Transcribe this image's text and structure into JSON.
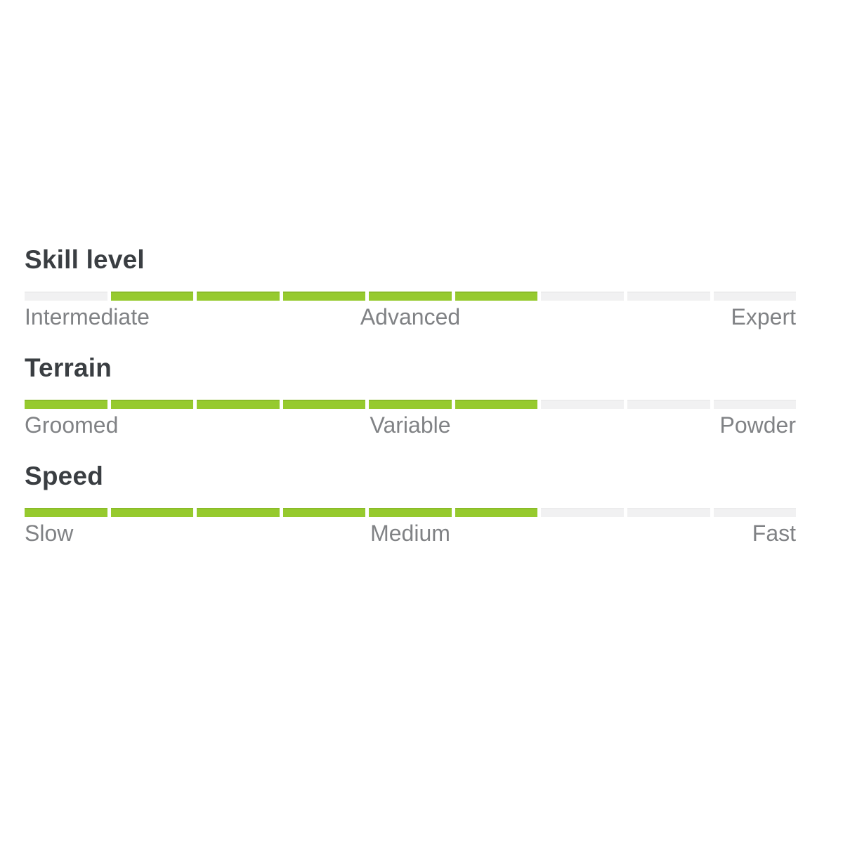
{
  "colors": {
    "filled": "#96ca2e",
    "empty": "#f1f1f2",
    "heading": "#3a3e42",
    "label": "#808285"
  },
  "sections": [
    {
      "title": "Skill level",
      "bar": {
        "segments": 9,
        "fill": [
          false,
          true,
          true,
          true,
          true,
          true,
          false,
          false,
          false
        ]
      },
      "labels": {
        "left": "Intermediate",
        "center": "Advanced",
        "right": "Expert"
      }
    },
    {
      "title": "Terrain",
      "bar": {
        "segments": 9,
        "fill": [
          true,
          true,
          true,
          true,
          true,
          true,
          false,
          false,
          false
        ]
      },
      "labels": {
        "left": "Groomed",
        "center": "Variable",
        "right": "Powder"
      }
    },
    {
      "title": "Speed",
      "bar": {
        "segments": 9,
        "fill": [
          true,
          true,
          true,
          true,
          true,
          true,
          false,
          false,
          false
        ]
      },
      "labels": {
        "left": "Slow",
        "center": "Medium",
        "right": "Fast"
      }
    }
  ]
}
